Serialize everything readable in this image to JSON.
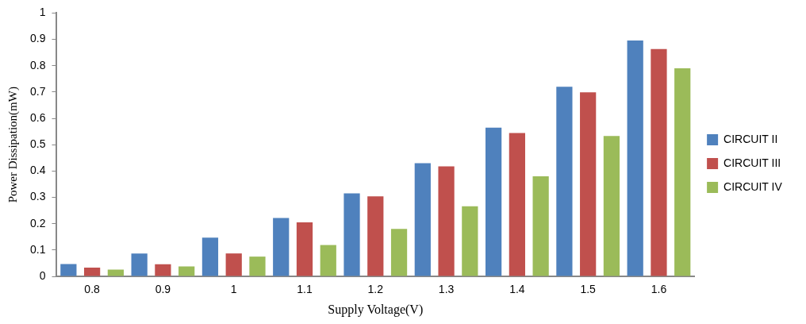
{
  "chart_data": {
    "type": "bar",
    "xlabel": "Supply Voltage(V)",
    "ylabel": "Power Dissipation(mW)",
    "categories": [
      "0.8",
      "0.9",
      "1",
      "1.1",
      "1.2",
      "1.3",
      "1.4",
      "1.5",
      "1.6"
    ],
    "series": [
      {
        "name": "CIRCUIT II",
        "color": "#4f81bd",
        "values": [
          0.047,
          0.087,
          0.147,
          0.222,
          0.315,
          0.43,
          0.565,
          0.72,
          0.896
        ]
      },
      {
        "name": "CIRCUIT III",
        "color": "#c0504d",
        "values": [
          0.033,
          0.046,
          0.087,
          0.205,
          0.304,
          0.418,
          0.544,
          0.699,
          0.863
        ]
      },
      {
        "name": "CIRCUIT IV",
        "color": "#9bbb59",
        "values": [
          0.026,
          0.038,
          0.075,
          0.119,
          0.18,
          0.266,
          0.38,
          0.533,
          0.79
        ]
      }
    ],
    "ylim": [
      0,
      1
    ],
    "yticks": [
      0,
      0.1,
      0.2,
      0.3,
      0.4,
      0.5,
      0.6,
      0.7,
      0.8,
      0.9,
      1
    ],
    "grid": false,
    "legend": "right"
  }
}
